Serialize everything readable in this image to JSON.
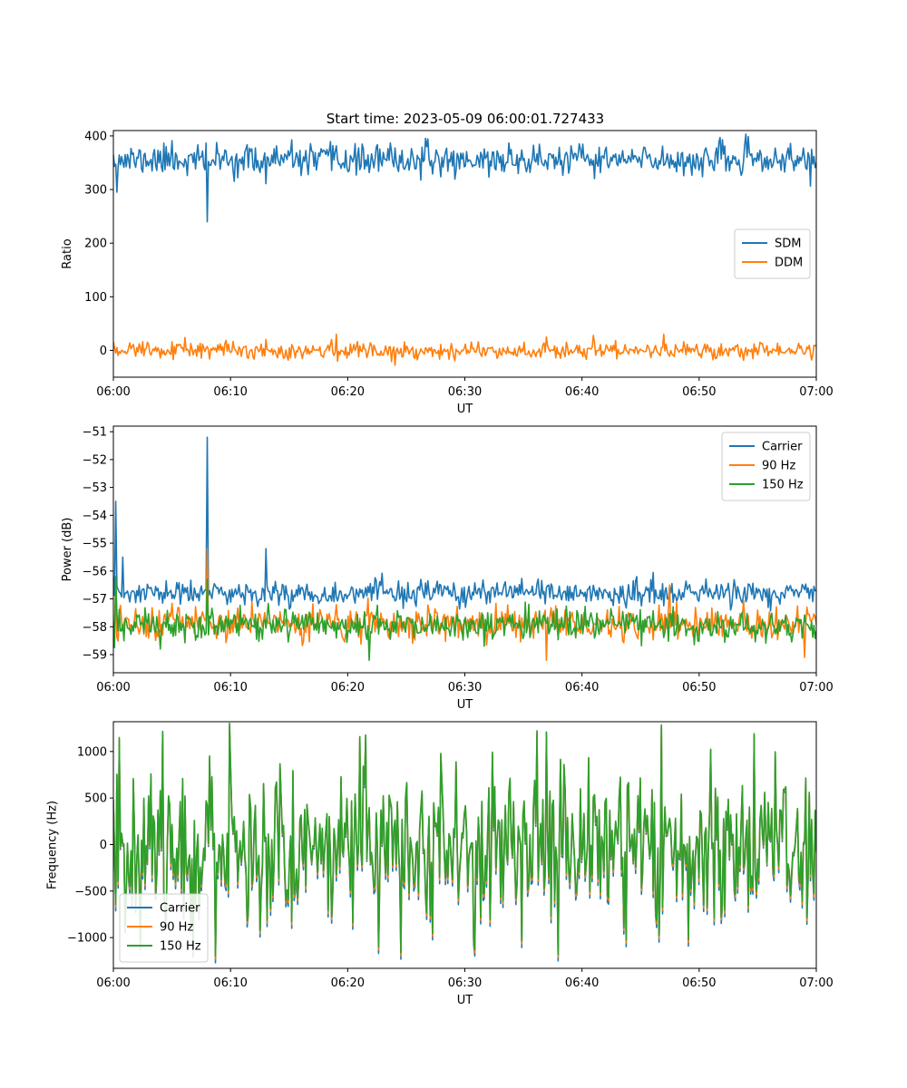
{
  "chart_data": [
    {
      "type": "line",
      "title": "Start time: 2023-05-09 06:00:01.727433",
      "xlabel": "UT",
      "ylabel": "Ratio",
      "x_range": [
        "06:00",
        "07:00"
      ],
      "x_ticks": [
        "06:00",
        "06:10",
        "06:20",
        "06:30",
        "06:40",
        "06:50",
        "07:00"
      ],
      "ylim": [
        -50,
        410
      ],
      "y_ticks": [
        0,
        100,
        200,
        300,
        400
      ],
      "legend_position": "center-right",
      "grid": false,
      "points_per_series": 600,
      "series": [
        {
          "name": "SDM",
          "color": "#1f77b4",
          "approx_mean": 355,
          "approx_noise": 14,
          "spikes": [
            {
              "x": "06:00",
              "y": 365
            },
            {
              "x": "06:00:20",
              "y": 295
            },
            {
              "x": "06:05",
              "y": 391
            },
            {
              "x": "06:08",
              "y": 240
            },
            {
              "x": "06:13",
              "y": 311
            },
            {
              "x": "06:52",
              "y": 393
            }
          ]
        },
        {
          "name": "DDM",
          "color": "#ff7f0e",
          "approx_mean": 0,
          "approx_noise": 8,
          "spikes": [
            {
              "x": "06:19",
              "y": 30
            },
            {
              "x": "06:24",
              "y": -28
            },
            {
              "x": "06:41",
              "y": 28
            },
            {
              "x": "06:47",
              "y": 30
            }
          ]
        }
      ]
    },
    {
      "type": "line",
      "title": "",
      "xlabel": "UT",
      "ylabel": "Power (dB)",
      "x_range": [
        "06:00",
        "07:00"
      ],
      "x_ticks": [
        "06:00",
        "06:10",
        "06:20",
        "06:30",
        "06:40",
        "06:50",
        "07:00"
      ],
      "ylim": [
        -59.65,
        -50.8
      ],
      "y_ticks": [
        -51,
        -52,
        -53,
        -54,
        -55,
        -56,
        -57,
        -58,
        -59
      ],
      "legend_position": "top-right",
      "grid": false,
      "points_per_series": 600,
      "series": [
        {
          "name": "Carrier",
          "color": "#1f77b4",
          "approx_mean": -56.8,
          "approx_noise": 0.22,
          "spikes": [
            {
              "x": "06:00",
              "y": -56.2
            },
            {
              "x": "06:00:15",
              "y": -53.5
            },
            {
              "x": "06:00:35",
              "y": -56.8
            },
            {
              "x": "06:00:50",
              "y": -55.5
            },
            {
              "x": "06:08",
              "y": -51.2
            },
            {
              "x": "06:13",
              "y": -55.2
            }
          ]
        },
        {
          "name": "90 Hz",
          "color": "#ff7f0e",
          "approx_mean": -57.9,
          "approx_noise": 0.28,
          "spikes": [
            {
              "x": "06:00:15",
              "y": -56.5
            },
            {
              "x": "06:08",
              "y": -55.2
            },
            {
              "x": "06:37",
              "y": -59.2
            },
            {
              "x": "06:47:30",
              "y": -56.5
            },
            {
              "x": "06:59",
              "y": -59.1
            }
          ]
        },
        {
          "name": "150 Hz",
          "color": "#2ca02c",
          "approx_mean": -57.95,
          "approx_noise": 0.28,
          "spikes": [
            {
              "x": "06:00:15",
              "y": -56.2
            },
            {
              "x": "06:08",
              "y": -56.3
            },
            {
              "x": "06:21:50",
              "y": -59.2
            }
          ]
        }
      ]
    },
    {
      "type": "line",
      "title": "",
      "xlabel": "UT",
      "ylabel": "Frequency (Hz)",
      "x_range": [
        "06:00",
        "07:00"
      ],
      "x_ticks": [
        "06:00",
        "06:10",
        "06:20",
        "06:30",
        "06:40",
        "06:50",
        "07:00"
      ],
      "ylim": [
        -1330,
        1320
      ],
      "y_ticks": [
        -1000,
        -500,
        0,
        500,
        1000
      ],
      "legend_position": "bottom-left",
      "grid": false,
      "points_per_series": 600,
      "series": [
        {
          "name": "Carrier",
          "color": "#1f77b4",
          "offset_from_base": -30,
          "extra_on_troughs": -40
        },
        {
          "name": "90 Hz",
          "color": "#ff7f0e",
          "offset_from_base": -10,
          "extra_on_troughs": -20
        },
        {
          "name": "150 Hz",
          "color": "#2ca02c",
          "approx_mean": 0,
          "approx_noise": 420,
          "spikes": [
            {
              "x": "06:00:30",
              "y": 1150
            },
            {
              "x": "06:08:40",
              "y": -1200
            },
            {
              "x": "06:21",
              "y": 1160
            },
            {
              "x": "06:22:40",
              "y": -1100
            },
            {
              "x": "06:37",
              "y": 1210
            },
            {
              "x": "06:38",
              "y": -1180
            }
          ]
        }
      ]
    }
  ]
}
